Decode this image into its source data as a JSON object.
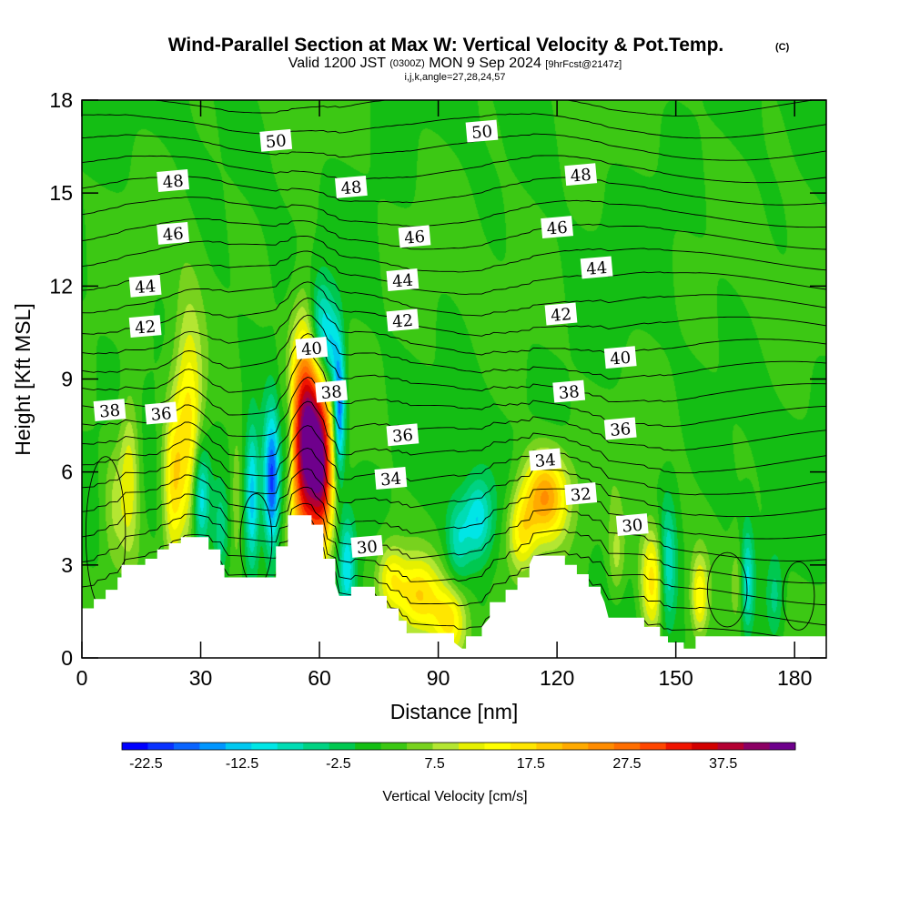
{
  "chart_data": {
    "type": "heatmap",
    "title": "Wind-Parallel Section at Max W: Vertical Velocity & Pot.Temp.",
    "title_mark": "(C)",
    "subtitle": {
      "valid": "Valid 1200 JST",
      "utc": "(0300Z)",
      "date": "MON 9 Sep 2024",
      "fcst": "[9hrFcst@2147z]"
    },
    "info": "i,j,k,angle=27,28,24,57",
    "xlabel": "Distance [nm]",
    "ylabel": "Height [Kft MSL]",
    "xlim": [
      0,
      188
    ],
    "ylim": [
      0,
      18
    ],
    "x_ticks": [
      0,
      30,
      60,
      90,
      120,
      150,
      180
    ],
    "y_ticks": [
      0,
      3,
      6,
      9,
      12,
      15,
      18
    ],
    "colorbar": {
      "label": "Vertical Velocity [cm/s]",
      "min": -25,
      "max": 45,
      "step": 2.5,
      "tick_values": [
        -22.5,
        -12.5,
        -2.5,
        7.5,
        17.5,
        27.5,
        37.5
      ],
      "tick_labels": [
        "-22.5",
        "-12.5",
        "-2.5",
        "7.5",
        "17.5",
        "27.5",
        "37.5"
      ],
      "colors": [
        "#0000ff",
        "#0a32ff",
        "#0a64ff",
        "#0096ff",
        "#00c8f0",
        "#00e6e6",
        "#00dcb4",
        "#00d282",
        "#00c850",
        "#14be14",
        "#3cc814",
        "#78d21e",
        "#b4e632",
        "#e6f000",
        "#ffff00",
        "#ffe600",
        "#ffc800",
        "#ffaa00",
        "#ff8c00",
        "#ff6e00",
        "#ff4600",
        "#f01400",
        "#d20000",
        "#b40032",
        "#8c0064",
        "#6e008c"
      ]
    },
    "terrain": [
      [
        0,
        1.6
      ],
      [
        3,
        1.6
      ],
      [
        3,
        1.9
      ],
      [
        6,
        1.9
      ],
      [
        6,
        2.2
      ],
      [
        9,
        2.2
      ],
      [
        9,
        2.6
      ],
      [
        10,
        2.6
      ],
      [
        10,
        3.0
      ],
      [
        16,
        3.0
      ],
      [
        16,
        3.2
      ],
      [
        19,
        3.2
      ],
      [
        19,
        3.5
      ],
      [
        22,
        3.5
      ],
      [
        22,
        3.7
      ],
      [
        25,
        3.7
      ],
      [
        25,
        3.9
      ],
      [
        32,
        3.9
      ],
      [
        32,
        3.5
      ],
      [
        35,
        3.5
      ],
      [
        35,
        3.0
      ],
      [
        36,
        3.0
      ],
      [
        36,
        2.6
      ],
      [
        49,
        2.6
      ],
      [
        49,
        3.6
      ],
      [
        52,
        3.6
      ],
      [
        52,
        4.6
      ],
      [
        58,
        4.6
      ],
      [
        58,
        4.3
      ],
      [
        61,
        4.3
      ],
      [
        61,
        3.2
      ],
      [
        64,
        3.2
      ],
      [
        64,
        2.4
      ],
      [
        65,
        2.0
      ],
      [
        68,
        2.0
      ],
      [
        68,
        2.3
      ],
      [
        74,
        2.3
      ],
      [
        74,
        2.0
      ],
      [
        77,
        2.0
      ],
      [
        77,
        1.6
      ],
      [
        80,
        1.6
      ],
      [
        80,
        1.2
      ],
      [
        82,
        1.2
      ],
      [
        82,
        0.8
      ],
      [
        94,
        0.8
      ],
      [
        94,
        0.5
      ],
      [
        96,
        0.3
      ],
      [
        97,
        0.3
      ],
      [
        97,
        0.7
      ],
      [
        101,
        0.7
      ],
      [
        101,
        1.0
      ],
      [
        103,
        1.3
      ],
      [
        103,
        1.8
      ],
      [
        107,
        1.8
      ],
      [
        107,
        2.2
      ],
      [
        110,
        2.2
      ],
      [
        110,
        2.6
      ],
      [
        113,
        2.6
      ],
      [
        113,
        3.0
      ],
      [
        114,
        3.3
      ],
      [
        122,
        3.3
      ],
      [
        122,
        3.0
      ],
      [
        125,
        3.0
      ],
      [
        125,
        2.7
      ],
      [
        128,
        2.7
      ],
      [
        128,
        2.3
      ],
      [
        131,
        2.3
      ],
      [
        131,
        2.1
      ],
      [
        132,
        1.8
      ],
      [
        133,
        1.3
      ],
      [
        142,
        1.3
      ],
      [
        142,
        1.0
      ],
      [
        146,
        1.0
      ],
      [
        146,
        0.7
      ],
      [
        148,
        0.7
      ],
      [
        148,
        0.5
      ],
      [
        152,
        0.5
      ],
      [
        152,
        0.3
      ],
      [
        155,
        0.3
      ],
      [
        155,
        0.7
      ],
      [
        188,
        0.7
      ]
    ],
    "updrafts": [
      {
        "x": 57,
        "y": 7.0,
        "sx": 3.0,
        "sy": 2.5,
        "amp": 40
      },
      {
        "x": 61,
        "y": 6.0,
        "sx": 1.8,
        "sy": 1.8,
        "amp": 20
      },
      {
        "x": 27,
        "y": 7.5,
        "sx": 2.5,
        "sy": 2.5,
        "amp": 14
      },
      {
        "x": 23,
        "y": 5.5,
        "sx": 1.8,
        "sy": 1.8,
        "amp": 12
      },
      {
        "x": 12,
        "y": 6.0,
        "sx": 1.8,
        "sy": 1.8,
        "amp": 10
      },
      {
        "x": 8,
        "y": 5.0,
        "sx": 2.0,
        "sy": 1.5,
        "amp": 5
      },
      {
        "x": 117,
        "y": 5.2,
        "sx": 4.0,
        "sy": 1.0,
        "amp": 20
      },
      {
        "x": 111,
        "y": 4.0,
        "sx": 2.5,
        "sy": 0.9,
        "amp": 12
      },
      {
        "x": 85,
        "y": 2.0,
        "sx": 4.0,
        "sy": 0.9,
        "amp": 14
      },
      {
        "x": 93,
        "y": 1.2,
        "sx": 3.0,
        "sy": 0.8,
        "amp": 12
      },
      {
        "x": 78,
        "y": 2.6,
        "sx": 2.5,
        "sy": 0.8,
        "amp": 10
      },
      {
        "x": 144,
        "y": 2.5,
        "sx": 2.0,
        "sy": 1.2,
        "amp": 14
      },
      {
        "x": 156,
        "y": 2.0,
        "sx": 1.5,
        "sy": 0.9,
        "amp": 12
      },
      {
        "x": 135,
        "y": 3.2,
        "sx": 1.5,
        "sy": 1.0,
        "amp": 6
      },
      {
        "x": 166,
        "y": 2.5,
        "sx": 1.5,
        "sy": 1.0,
        "amp": 5
      },
      {
        "x": 39,
        "y": 5.0,
        "sx": 1.0,
        "sy": 1.6,
        "amp": 5
      }
    ],
    "downdrafts": [
      {
        "x": 48,
        "y": 5.7,
        "sx": 1.5,
        "sy": 1.6,
        "amp": 22
      },
      {
        "x": 43,
        "y": 5.2,
        "sx": 1.2,
        "sy": 1.6,
        "amp": 14
      },
      {
        "x": 30,
        "y": 5.2,
        "sx": 1.5,
        "sy": 1.2,
        "amp": 14
      },
      {
        "x": 65,
        "y": 8.0,
        "sx": 1.0,
        "sy": 1.5,
        "amp": 20
      },
      {
        "x": 60,
        "y": 10.5,
        "sx": 2.0,
        "sy": 1.2,
        "amp": 14
      },
      {
        "x": 63,
        "y": 10.0,
        "sx": 1.5,
        "sy": 1.0,
        "amp": 10
      },
      {
        "x": 67,
        "y": 3.0,
        "sx": 1.5,
        "sy": 1.2,
        "amp": 12
      },
      {
        "x": 52,
        "y": 7.0,
        "sx": 1.0,
        "sy": 1.5,
        "amp": 8
      },
      {
        "x": 100,
        "y": 4.5,
        "sx": 2.5,
        "sy": 0.9,
        "amp": 12
      },
      {
        "x": 95,
        "y": 3.8,
        "sx": 2.0,
        "sy": 0.9,
        "amp": 8
      },
      {
        "x": 148,
        "y": 3.0,
        "sx": 1.5,
        "sy": 1.5,
        "amp": 10
      },
      {
        "x": 168,
        "y": 2.5,
        "sx": 1.2,
        "sy": 1.2,
        "amp": 12
      },
      {
        "x": 175,
        "y": 2.0,
        "sx": 1.5,
        "sy": 1.0,
        "amp": 6
      },
      {
        "x": 35,
        "y": 4.0,
        "sx": 1.2,
        "sy": 1.0,
        "amp": 6
      }
    ],
    "theta_labels": [
      {
        "text": "50",
        "x": 49,
        "y": 16.7
      },
      {
        "text": "50",
        "x": 101,
        "y": 17.0
      },
      {
        "text": "48",
        "x": 23,
        "y": 15.4
      },
      {
        "text": "48",
        "x": 68,
        "y": 15.2
      },
      {
        "text": "48",
        "x": 126,
        "y": 15.6
      },
      {
        "text": "46",
        "x": 23,
        "y": 13.7
      },
      {
        "text": "46",
        "x": 84,
        "y": 13.6
      },
      {
        "text": "46",
        "x": 120,
        "y": 13.9
      },
      {
        "text": "44",
        "x": 16,
        "y": 12.0
      },
      {
        "text": "44",
        "x": 81,
        "y": 12.2
      },
      {
        "text": "44",
        "x": 130,
        "y": 12.6
      },
      {
        "text": "42",
        "x": 16,
        "y": 10.7
      },
      {
        "text": "42",
        "x": 81,
        "y": 10.9
      },
      {
        "text": "42",
        "x": 121,
        "y": 11.1
      },
      {
        "text": "40",
        "x": 58,
        "y": 10.0
      },
      {
        "text": "40",
        "x": 136,
        "y": 9.7
      },
      {
        "text": "38",
        "x": 7,
        "y": 8.0
      },
      {
        "text": "38",
        "x": 63,
        "y": 8.6
      },
      {
        "text": "38",
        "x": 123,
        "y": 8.6
      },
      {
        "text": "36",
        "x": 20,
        "y": 7.9
      },
      {
        "text": "36",
        "x": 81,
        "y": 7.2
      },
      {
        "text": "36",
        "x": 136,
        "y": 7.4
      },
      {
        "text": "34",
        "x": 78,
        "y": 5.8
      },
      {
        "text": "34",
        "x": 117,
        "y": 6.4
      },
      {
        "text": "32",
        "x": 126,
        "y": 5.3
      },
      {
        "text": "30",
        "x": 72,
        "y": 3.6
      },
      {
        "text": "30",
        "x": 139,
        "y": 4.3
      }
    ],
    "colors": {
      "background_field": "#14be14",
      "terrain": "#ffffff",
      "contour": "#000000"
    }
  }
}
